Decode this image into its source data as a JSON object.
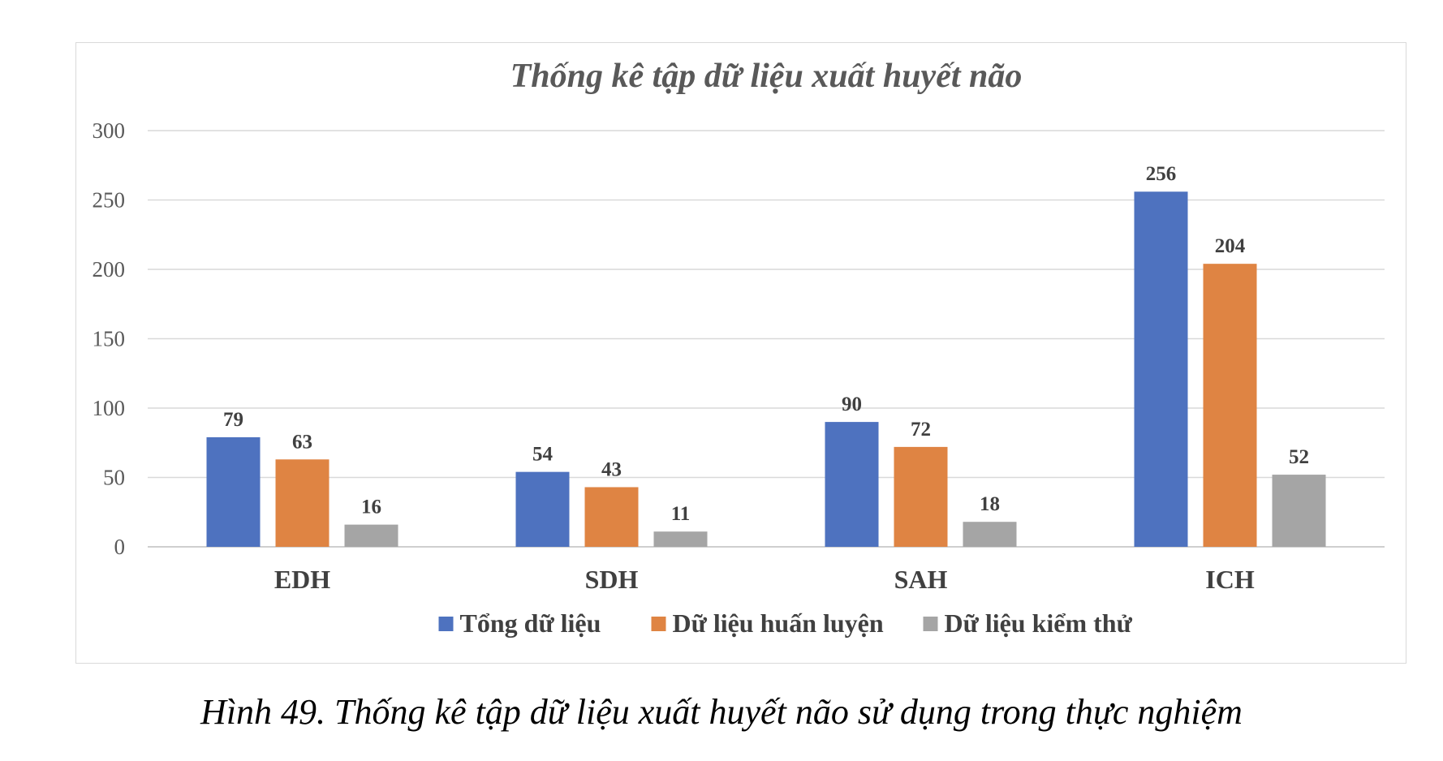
{
  "caption": "Hình 49. Thống kê tập dữ liệu xuất huyết não sử dụng trong thực nghiệm",
  "chart_data": {
    "type": "bar",
    "title": "Thống kê tập dữ liệu xuất huyết não",
    "xlabel": "",
    "ylabel": "",
    "ylim": [
      0,
      300
    ],
    "yticks": [
      0,
      50,
      100,
      150,
      200,
      250,
      300
    ],
    "grid": true,
    "legend_position": "bottom",
    "categories": [
      "EDH",
      "SDH",
      "SAH",
      "ICH"
    ],
    "series": [
      {
        "name": "Tổng dữ liệu",
        "color": "#4e72bf",
        "values": [
          79,
          54,
          90,
          256
        ]
      },
      {
        "name": "Dữ liệu huấn luyện",
        "color": "#df8443",
        "values": [
          63,
          43,
          72,
          204
        ]
      },
      {
        "name": "Dữ liệu kiểm thử",
        "color": "#a5a5a5",
        "values": [
          16,
          11,
          18,
          52
        ]
      }
    ]
  }
}
